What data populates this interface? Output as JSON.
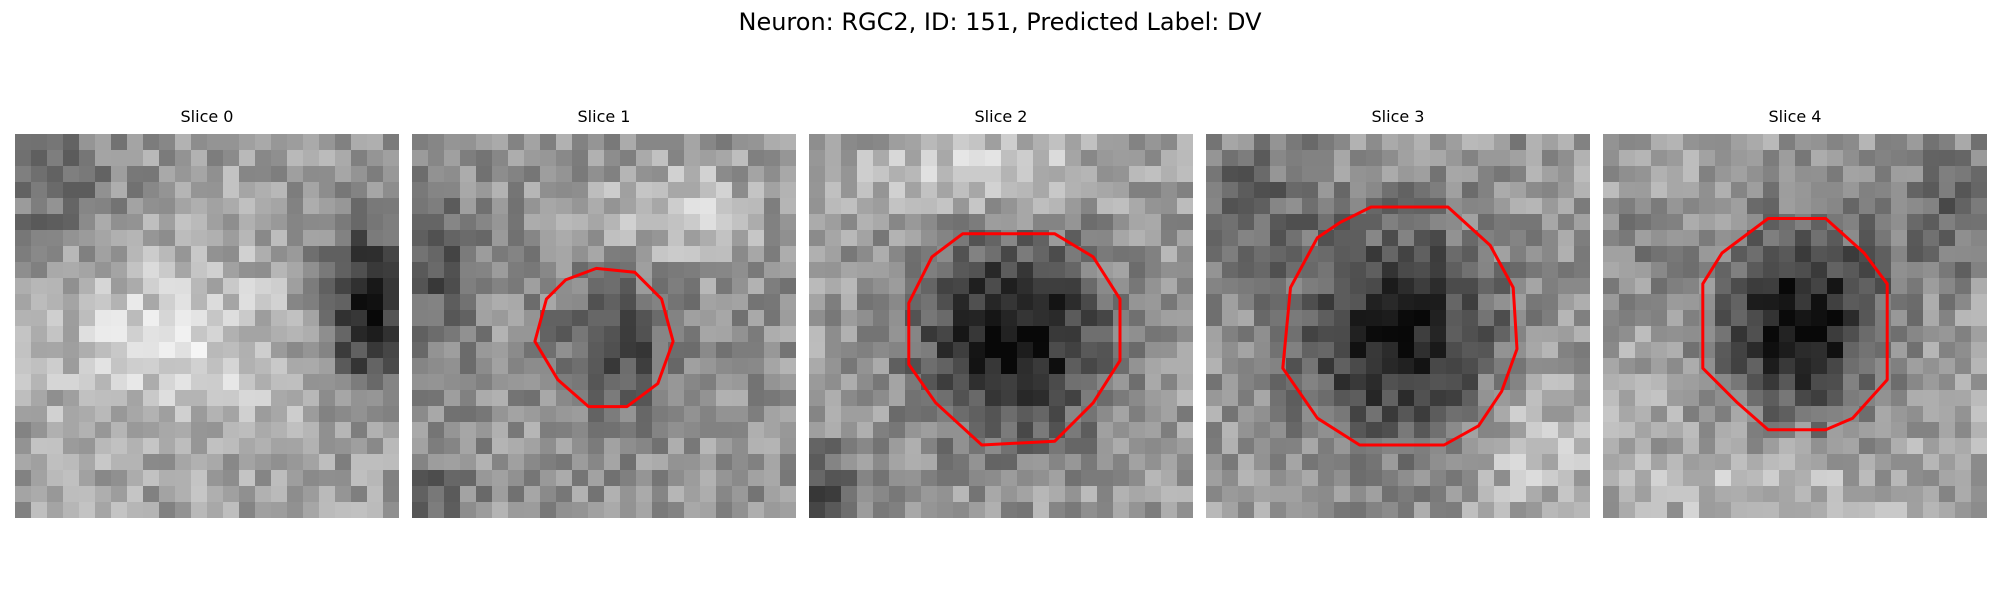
{
  "figure": {
    "title": "Neuron: RGC2, ID: 151, Predicted Label: DV",
    "contour_color": "#ff0000"
  },
  "slices": [
    {
      "label": "Slice 0",
      "has_contour": false
    },
    {
      "label": "Slice 1",
      "has_contour": true
    },
    {
      "label": "Slice 2",
      "has_contour": true
    },
    {
      "label": "Slice 3",
      "has_contour": true
    },
    {
      "label": "Slice 4",
      "has_contour": true
    }
  ]
}
